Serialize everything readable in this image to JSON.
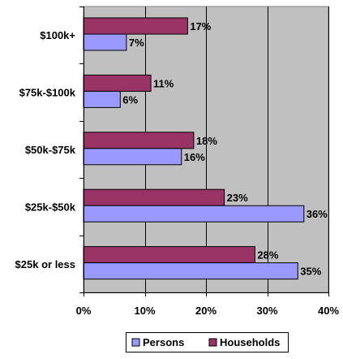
{
  "chart_data": {
    "type": "bar",
    "orientation": "horizontal",
    "categories": [
      "$100k+",
      "$75k-$100k",
      "$50k-$75k",
      "$25k-$50k",
      "$25k or less"
    ],
    "series": [
      {
        "name": "Households",
        "color": "#993366",
        "values": [
          17,
          11,
          18,
          23,
          28
        ],
        "labels": [
          "17%",
          "11%",
          "18%",
          "23%",
          "28%"
        ]
      },
      {
        "name": "Persons",
        "color": "#9999FF",
        "values": [
          7,
          6,
          16,
          36,
          35
        ],
        "labels": [
          "7%",
          "6%",
          "16%",
          "36%",
          "35%"
        ]
      }
    ],
    "xlim": [
      0,
      40
    ],
    "xticks": [
      0,
      10,
      20,
      30,
      40
    ],
    "xtick_labels": [
      "0%",
      "10%",
      "20%",
      "30%",
      "40%"
    ],
    "plot_background": "#C0C0C0",
    "grid": true,
    "legend": {
      "position": "bottom",
      "entries": [
        "Persons",
        "Households"
      ]
    },
    "title": "",
    "xlabel": "",
    "ylabel": ""
  }
}
